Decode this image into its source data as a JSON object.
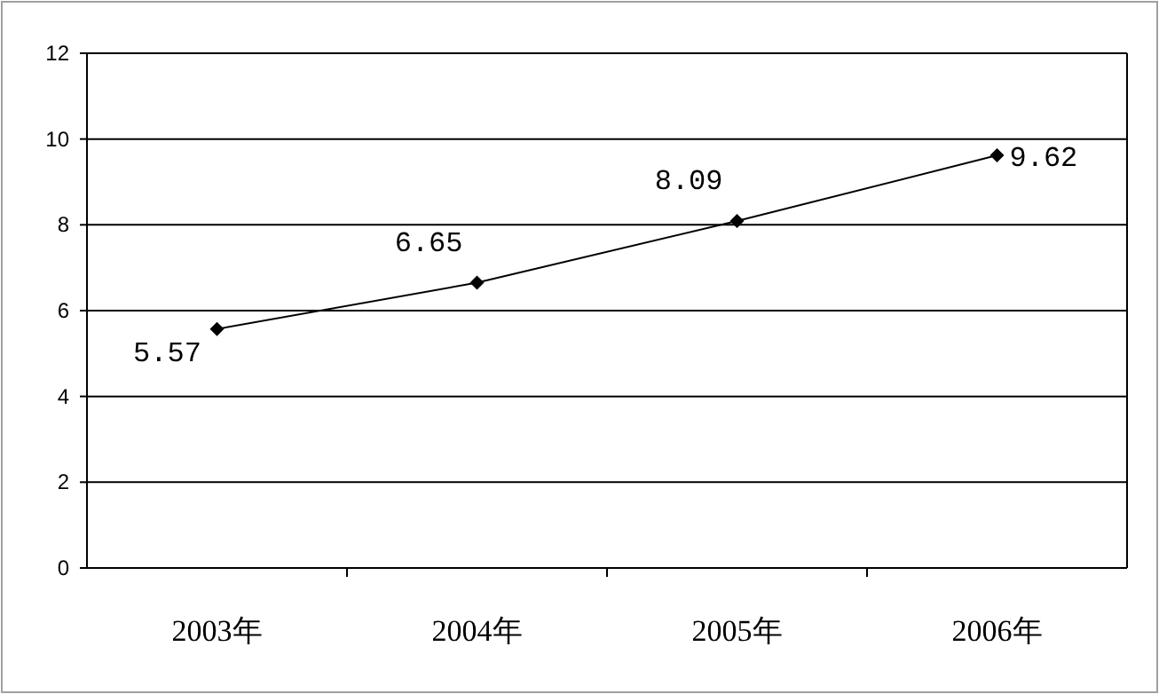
{
  "chart_data": {
    "type": "line",
    "categories": [
      "2003年",
      "2004年",
      "2005年",
      "2006年"
    ],
    "values": [
      5.57,
      6.65,
      8.09,
      9.62
    ],
    "color": "#000000",
    "ylim": [
      0,
      12
    ],
    "yticks": [
      0,
      2,
      4,
      6,
      8,
      10,
      12
    ],
    "grid": "y",
    "marker": "diamond",
    "line_style": "solid",
    "data_labels": true
  }
}
